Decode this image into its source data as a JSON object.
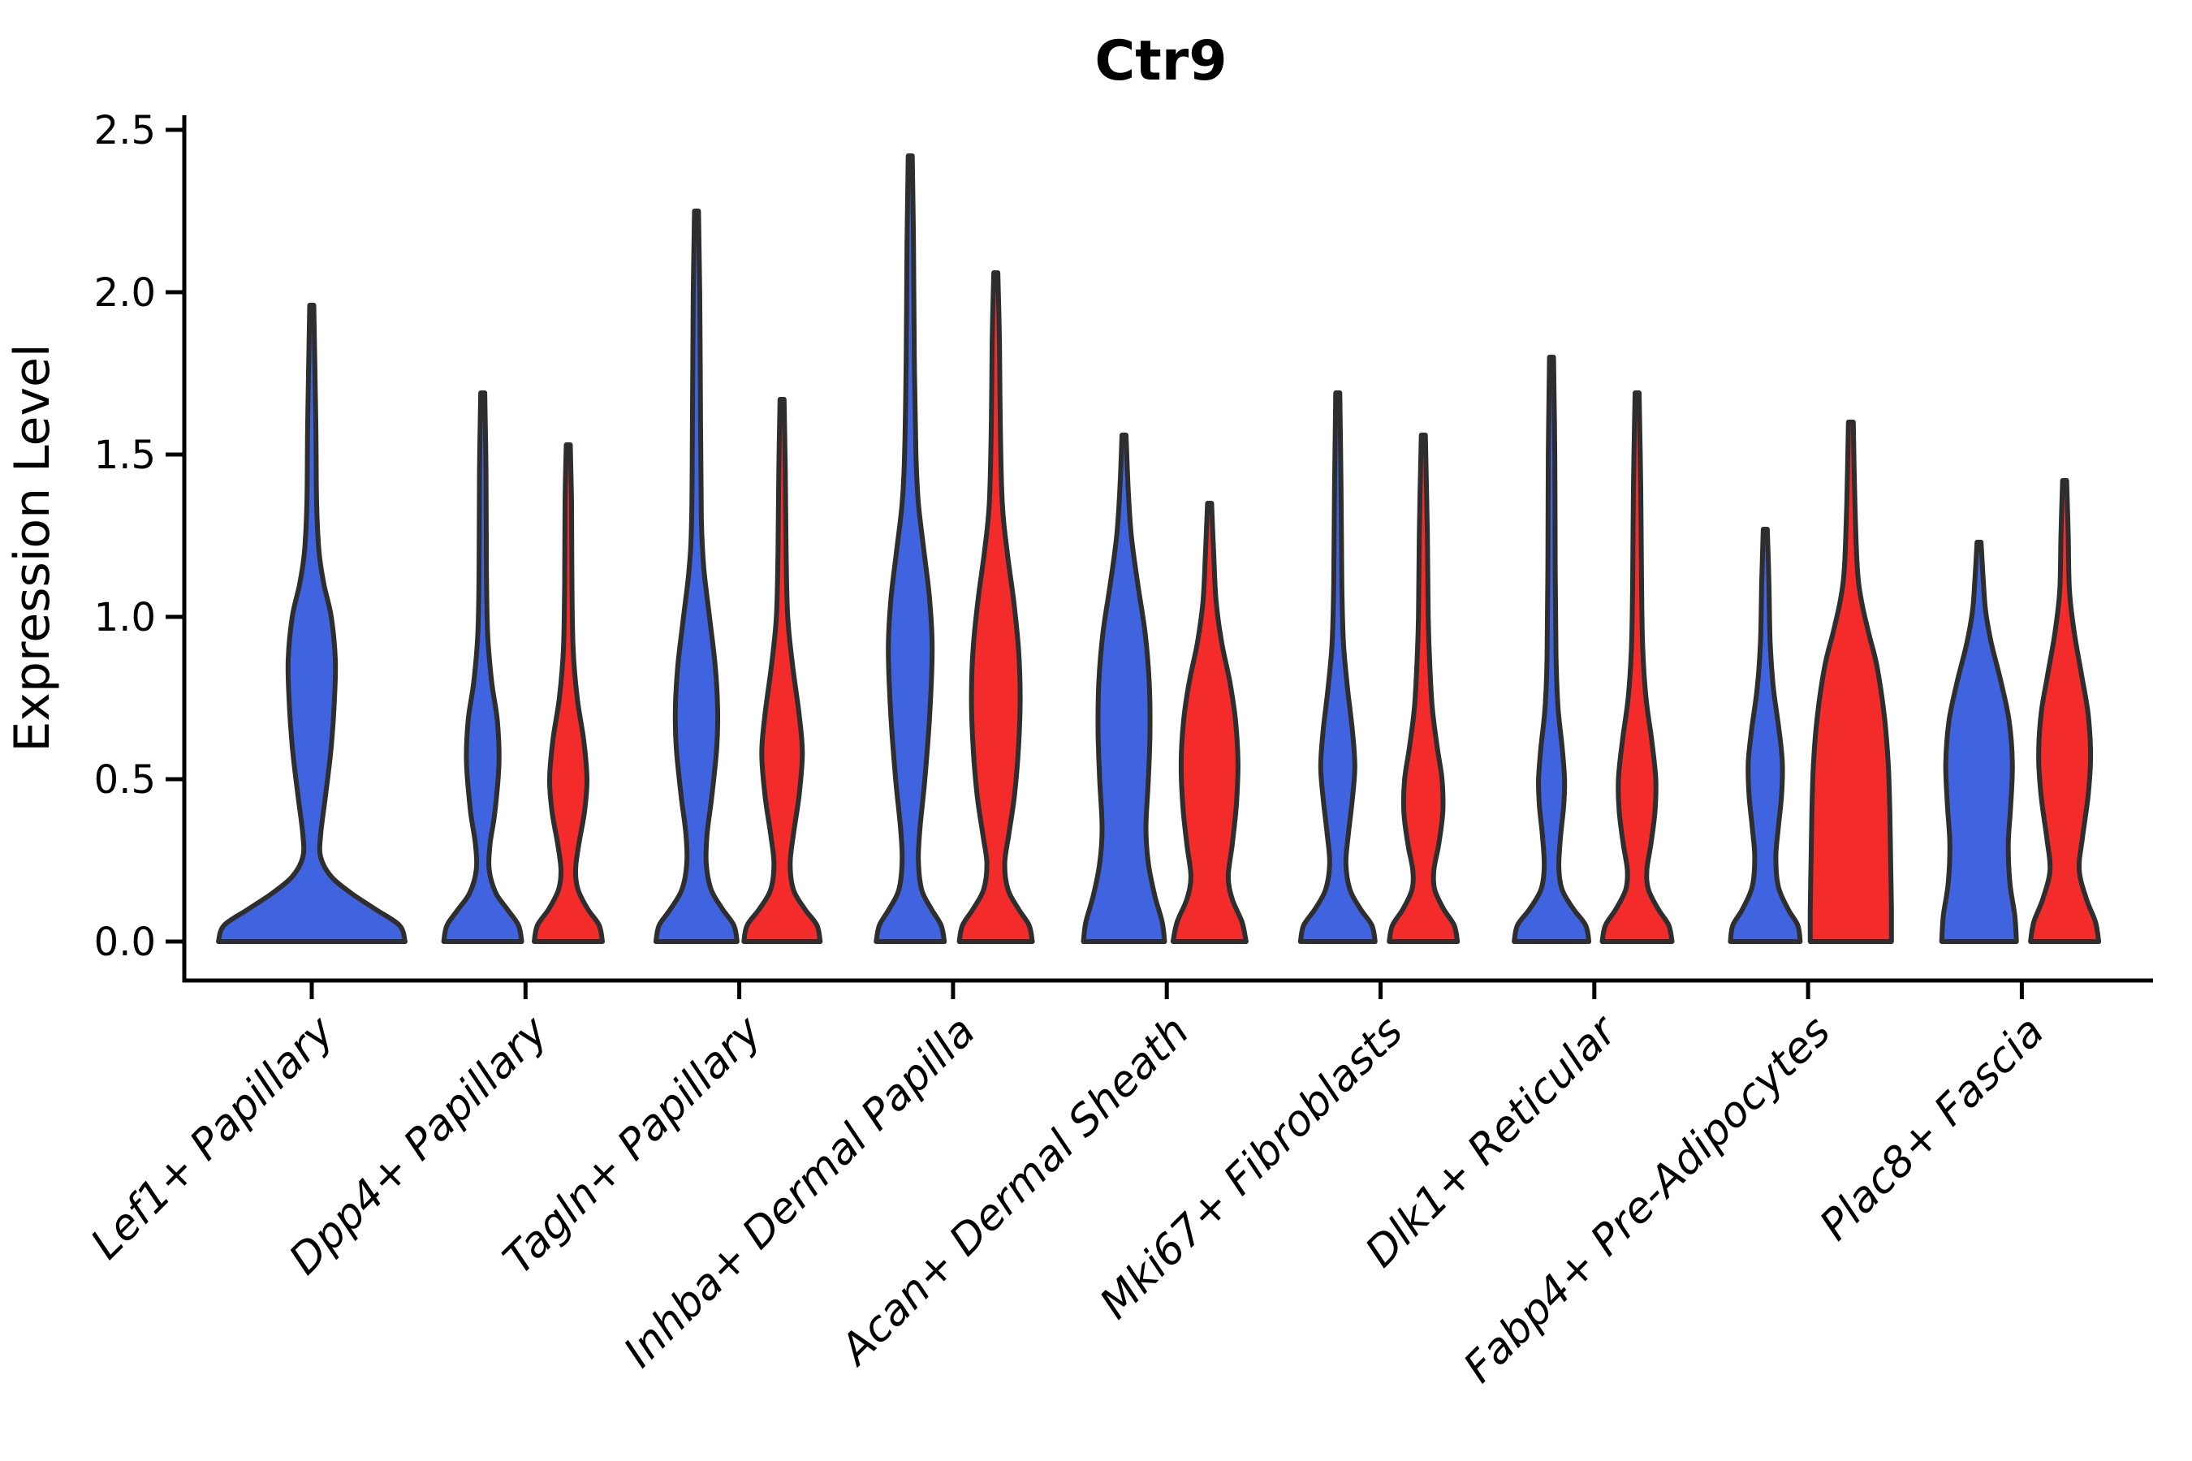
{
  "title": "Ctr9",
  "y_axis": {
    "label": "Expression Level",
    "tick_labels": [
      "0.0",
      "0.5",
      "1.0",
      "1.5",
      "2.0",
      "2.5"
    ]
  },
  "x_axis": {
    "categories": [
      "Lef1+ Papillary",
      "Dpp4+ Papillary",
      "Tagln+ Papillary",
      "Inhba+ Dermal Papilla",
      "Acan+ Dermal Sheath",
      "Mki67+ Fibroblasts",
      "Dlk1+ Reticular",
      "Fabp4+ Pre-Adipocytes",
      "Plac8+ Fascia"
    ]
  },
  "colors": {
    "blue": "#4064DF",
    "red": "#F32B2B",
    "violin_outline": "#2E2E2E",
    "axis": "#000000"
  },
  "chart_data": {
    "type": "violin",
    "title": "Ctr9",
    "xlabel": "",
    "ylabel": "Expression Level",
    "ylim": [
      -0.12,
      2.55
    ],
    "yticks": [
      0,
      0.5,
      1.0,
      1.5,
      2.0,
      2.5
    ],
    "grid": false,
    "legend": null,
    "categories": [
      "Lef1+ Papillary",
      "Dpp4+ Papillary",
      "Tagln+ Papillary",
      "Inhba+ Dermal Papilla",
      "Acan+ Dermal Sheath",
      "Mki67+ Fibroblasts",
      "Dlk1+ Reticular",
      "Fabp4+ Pre-Adipocytes",
      "Plac8+ Fascia"
    ],
    "series": [
      {
        "name": "blue",
        "color": "#4064DF"
      },
      {
        "name": "red",
        "color": "#F32B2B"
      }
    ],
    "note": "profile entries are [expression_value, density_halfwidth_px]; offset is position of violin within category group (categorical units, group spacing = 1.0); peak = max expression (violin tip)",
    "violins": [
      {
        "category": "Lef1+ Papillary",
        "series": "blue",
        "offset": 0,
        "peak": 1.96,
        "profile": [
          [
            0,
            115
          ],
          [
            0.05,
            108
          ],
          [
            0.1,
            78
          ],
          [
            0.15,
            48
          ],
          [
            0.2,
            24
          ],
          [
            0.26,
            11
          ],
          [
            0.33,
            11
          ],
          [
            0.45,
            17
          ],
          [
            0.6,
            24
          ],
          [
            0.75,
            28
          ],
          [
            0.87,
            29
          ],
          [
            1.0,
            24
          ],
          [
            1.1,
            15
          ],
          [
            1.2,
            9
          ],
          [
            1.35,
            6
          ],
          [
            1.6,
            5
          ],
          [
            1.96,
            2.5
          ]
        ]
      },
      {
        "category": "Dpp4+ Papillary",
        "series": "blue",
        "offset": -0.2,
        "peak": 1.69,
        "profile": [
          [
            0,
            48
          ],
          [
            0.05,
            44
          ],
          [
            0.1,
            30
          ],
          [
            0.15,
            16
          ],
          [
            0.22,
            8
          ],
          [
            0.3,
            9
          ],
          [
            0.4,
            15
          ],
          [
            0.55,
            20
          ],
          [
            0.68,
            18
          ],
          [
            0.8,
            11
          ],
          [
            0.95,
            6
          ],
          [
            1.15,
            4.5
          ],
          [
            1.45,
            4
          ],
          [
            1.69,
            2.5
          ]
        ]
      },
      {
        "category": "Dpp4+ Papillary",
        "series": "red",
        "offset": 0.2,
        "peak": 1.53,
        "profile": [
          [
            0,
            42
          ],
          [
            0.05,
            38
          ],
          [
            0.1,
            24
          ],
          [
            0.16,
            12
          ],
          [
            0.22,
            9
          ],
          [
            0.3,
            13
          ],
          [
            0.4,
            20
          ],
          [
            0.5,
            23
          ],
          [
            0.62,
            19
          ],
          [
            0.75,
            11
          ],
          [
            0.9,
            6
          ],
          [
            1.1,
            4.5
          ],
          [
            1.35,
            4
          ],
          [
            1.53,
            2.5
          ]
        ]
      },
      {
        "category": "Tagln+ Papillary",
        "series": "blue",
        "offset": -0.2,
        "peak": 2.25,
        "profile": [
          [
            0,
            50
          ],
          [
            0.05,
            46
          ],
          [
            0.1,
            32
          ],
          [
            0.16,
            18
          ],
          [
            0.24,
            12
          ],
          [
            0.33,
            13
          ],
          [
            0.45,
            19
          ],
          [
            0.6,
            25
          ],
          [
            0.72,
            26
          ],
          [
            0.85,
            23
          ],
          [
            1.0,
            16
          ],
          [
            1.15,
            9
          ],
          [
            1.3,
            6
          ],
          [
            1.6,
            5
          ],
          [
            2.0,
            4
          ],
          [
            2.25,
            2.5
          ]
        ]
      },
      {
        "category": "Tagln+ Papillary",
        "series": "red",
        "offset": 0.2,
        "peak": 1.67,
        "profile": [
          [
            0,
            47
          ],
          [
            0.05,
            43
          ],
          [
            0.1,
            28
          ],
          [
            0.16,
            14
          ],
          [
            0.24,
            10
          ],
          [
            0.33,
            14
          ],
          [
            0.45,
            21
          ],
          [
            0.58,
            25
          ],
          [
            0.7,
            21
          ],
          [
            0.85,
            13
          ],
          [
            1.0,
            7
          ],
          [
            1.2,
            5
          ],
          [
            1.45,
            4
          ],
          [
            1.67,
            2.5
          ]
        ]
      },
      {
        "category": "Inhba+ Dermal Papilla",
        "series": "blue",
        "offset": -0.2,
        "peak": 2.42,
        "profile": [
          [
            0,
            42
          ],
          [
            0.05,
            38
          ],
          [
            0.1,
            26
          ],
          [
            0.16,
            14
          ],
          [
            0.25,
            10
          ],
          [
            0.35,
            12
          ],
          [
            0.5,
            18
          ],
          [
            0.7,
            24
          ],
          [
            0.9,
            27
          ],
          [
            1.05,
            24
          ],
          [
            1.2,
            17
          ],
          [
            1.35,
            10
          ],
          [
            1.5,
            7
          ],
          [
            1.8,
            5
          ],
          [
            2.15,
            4
          ],
          [
            2.42,
            2.5
          ]
        ]
      },
      {
        "category": "Inhba+ Dermal Papilla",
        "series": "red",
        "offset": 0.2,
        "peak": 2.06,
        "profile": [
          [
            0,
            45
          ],
          [
            0.05,
            41
          ],
          [
            0.1,
            28
          ],
          [
            0.16,
            15
          ],
          [
            0.24,
            11
          ],
          [
            0.33,
            16
          ],
          [
            0.45,
            23
          ],
          [
            0.6,
            28
          ],
          [
            0.75,
            30
          ],
          [
            0.9,
            28
          ],
          [
            1.05,
            22
          ],
          [
            1.2,
            14
          ],
          [
            1.35,
            8
          ],
          [
            1.6,
            5.5
          ],
          [
            1.85,
            4.5
          ],
          [
            2.06,
            2.5
          ]
        ]
      },
      {
        "category": "Acan+ Dermal Sheath",
        "series": "blue",
        "offset": -0.2,
        "peak": 1.56,
        "profile": [
          [
            0,
            50
          ],
          [
            0.06,
            47
          ],
          [
            0.14,
            38
          ],
          [
            0.24,
            30
          ],
          [
            0.35,
            27
          ],
          [
            0.5,
            30
          ],
          [
            0.65,
            32
          ],
          [
            0.8,
            31
          ],
          [
            0.95,
            26
          ],
          [
            1.1,
            17
          ],
          [
            1.25,
            9
          ],
          [
            1.4,
            5
          ],
          [
            1.56,
            2.5
          ]
        ]
      },
      {
        "category": "Acan+ Dermal Sheath",
        "series": "red",
        "offset": 0.2,
        "peak": 1.35,
        "profile": [
          [
            0,
            45
          ],
          [
            0.06,
            40
          ],
          [
            0.13,
            28
          ],
          [
            0.2,
            23
          ],
          [
            0.3,
            28
          ],
          [
            0.42,
            33
          ],
          [
            0.55,
            35
          ],
          [
            0.68,
            32
          ],
          [
            0.8,
            25
          ],
          [
            0.92,
            15
          ],
          [
            1.05,
            8
          ],
          [
            1.2,
            5
          ],
          [
            1.35,
            2.5
          ]
        ]
      },
      {
        "category": "Mki67+ Fibroblasts",
        "series": "blue",
        "offset": -0.2,
        "peak": 1.69,
        "profile": [
          [
            0,
            46
          ],
          [
            0.05,
            42
          ],
          [
            0.1,
            28
          ],
          [
            0.16,
            15
          ],
          [
            0.24,
            10
          ],
          [
            0.33,
            13
          ],
          [
            0.44,
            18
          ],
          [
            0.54,
            21
          ],
          [
            0.65,
            18
          ],
          [
            0.78,
            12
          ],
          [
            0.92,
            7
          ],
          [
            1.1,
            5
          ],
          [
            1.4,
            4
          ],
          [
            1.69,
            2.5
          ]
        ]
      },
      {
        "category": "Mki67+ Fibroblasts",
        "series": "red",
        "offset": 0.2,
        "peak": 1.56,
        "profile": [
          [
            0,
            42
          ],
          [
            0.05,
            38
          ],
          [
            0.1,
            25
          ],
          [
            0.16,
            14
          ],
          [
            0.22,
            13
          ],
          [
            0.3,
            19
          ],
          [
            0.4,
            24
          ],
          [
            0.5,
            23
          ],
          [
            0.6,
            17
          ],
          [
            0.72,
            11
          ],
          [
            0.85,
            8
          ],
          [
            1.0,
            6
          ],
          [
            1.25,
            5
          ],
          [
            1.56,
            2.5
          ]
        ]
      },
      {
        "category": "Dlk1+ Reticular",
        "series": "blue",
        "offset": -0.2,
        "peak": 1.8,
        "profile": [
          [
            0,
            46
          ],
          [
            0.05,
            42
          ],
          [
            0.1,
            27
          ],
          [
            0.16,
            13
          ],
          [
            0.23,
            9
          ],
          [
            0.32,
            11
          ],
          [
            0.42,
            15
          ],
          [
            0.5,
            16
          ],
          [
            0.6,
            13
          ],
          [
            0.72,
            8
          ],
          [
            0.88,
            5.5
          ],
          [
            1.15,
            4.5
          ],
          [
            1.5,
            4
          ],
          [
            1.8,
            2.5
          ]
        ]
      },
      {
        "category": "Dlk1+ Reticular",
        "series": "red",
        "offset": 0.2,
        "peak": 1.69,
        "profile": [
          [
            0,
            43
          ],
          [
            0.05,
            39
          ],
          [
            0.1,
            26
          ],
          [
            0.16,
            14
          ],
          [
            0.22,
            12
          ],
          [
            0.3,
            17
          ],
          [
            0.4,
            22
          ],
          [
            0.5,
            23
          ],
          [
            0.62,
            18
          ],
          [
            0.75,
            11
          ],
          [
            0.9,
            7
          ],
          [
            1.1,
            5.5
          ],
          [
            1.4,
            4.5
          ],
          [
            1.69,
            2.5
          ]
        ]
      },
      {
        "category": "Fabp4+ Pre-Adipocytes",
        "series": "blue",
        "offset": -0.2,
        "peak": 1.27,
        "profile": [
          [
            0,
            43
          ],
          [
            0.05,
            40
          ],
          [
            0.1,
            28
          ],
          [
            0.17,
            16
          ],
          [
            0.26,
            13
          ],
          [
            0.35,
            16
          ],
          [
            0.45,
            20
          ],
          [
            0.55,
            21
          ],
          [
            0.65,
            17
          ],
          [
            0.78,
            10
          ],
          [
            0.92,
            6
          ],
          [
            1.1,
            4.5
          ],
          [
            1.27,
            2.5
          ]
        ]
      },
      {
        "category": "Fabp4+ Pre-Adipocytes",
        "series": "red",
        "offset": 0.2,
        "peak": 1.6,
        "profile": [
          [
            0,
            50
          ],
          [
            0.1,
            50
          ],
          [
            0.25,
            49
          ],
          [
            0.4,
            48
          ],
          [
            0.55,
            46
          ],
          [
            0.7,
            41
          ],
          [
            0.85,
            32
          ],
          [
            0.95,
            22
          ],
          [
            1.05,
            13
          ],
          [
            1.15,
            8
          ],
          [
            1.35,
            5
          ],
          [
            1.6,
            3
          ]
        ]
      },
      {
        "category": "Plac8+ Fascia",
        "series": "blue",
        "offset": -0.2,
        "peak": 1.23,
        "profile": [
          [
            0,
            46
          ],
          [
            0.08,
            44
          ],
          [
            0.18,
            38
          ],
          [
            0.3,
            36
          ],
          [
            0.42,
            39
          ],
          [
            0.55,
            41
          ],
          [
            0.68,
            37
          ],
          [
            0.8,
            27
          ],
          [
            0.92,
            15
          ],
          [
            1.02,
            8
          ],
          [
            1.12,
            5
          ],
          [
            1.23,
            2.5
          ]
        ]
      },
      {
        "category": "Plac8+ Fascia",
        "series": "red",
        "offset": 0.2,
        "peak": 1.42,
        "profile": [
          [
            0,
            42
          ],
          [
            0.06,
            38
          ],
          [
            0.13,
            27
          ],
          [
            0.22,
            18
          ],
          [
            0.32,
            22
          ],
          [
            0.45,
            29
          ],
          [
            0.57,
            32
          ],
          [
            0.7,
            29
          ],
          [
            0.82,
            21
          ],
          [
            0.95,
            12
          ],
          [
            1.08,
            6
          ],
          [
            1.25,
            4.5
          ],
          [
            1.42,
            2.5
          ]
        ]
      }
    ]
  }
}
